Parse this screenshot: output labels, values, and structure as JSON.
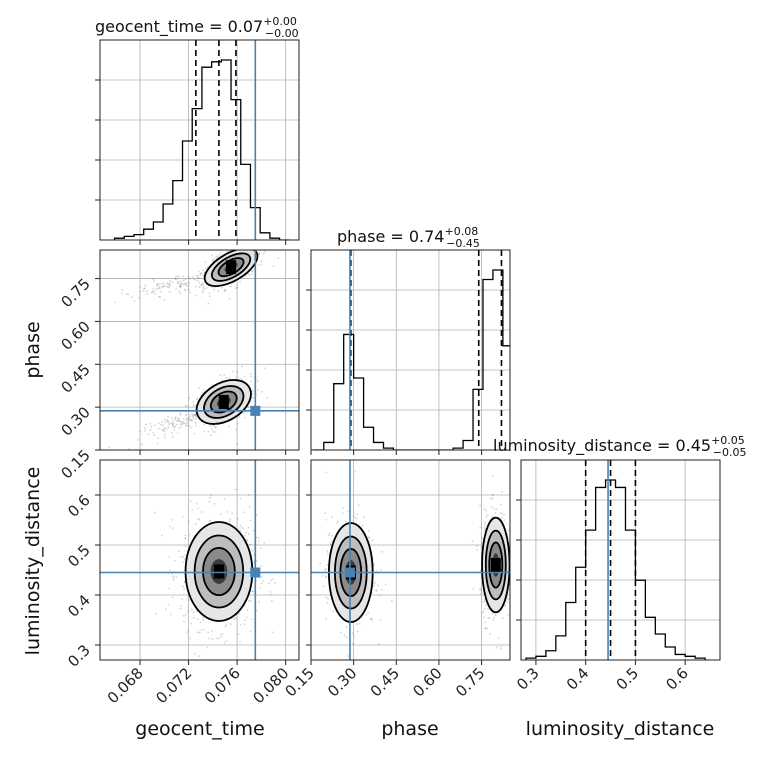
{
  "chart_data": {
    "type": "corner",
    "parameters": [
      "geocent_time",
      "phase",
      "luminosity_distance"
    ],
    "axis_labels": [
      "geocent_time",
      "phase",
      "luminosity_distance"
    ],
    "titles": [
      {
        "text": "geocent_time = 0.07",
        "sup": "+0.00",
        "sub": "−0.00"
      },
      {
        "text": "phase = 0.74",
        "sup": "+0.08",
        "sub": "−0.45"
      },
      {
        "text": "luminosity_distance = 0.45",
        "sup": "+0.05",
        "sub": "−0.05"
      }
    ],
    "ranges": [
      [
        0.0647,
        0.0811
      ],
      [
        0.15,
        0.85
      ],
      [
        0.27,
        0.67
      ]
    ],
    "ticks": [
      {
        "values": [
          0.068,
          0.072,
          0.076,
          0.08
        ],
        "labels": [
          "0.068",
          "0.072",
          "0.076",
          "0.080"
        ]
      },
      {
        "values": [
          0.15,
          0.3,
          0.45,
          0.6,
          0.75
        ],
        "labels": [
          "0.15",
          "0.30",
          "0.45",
          "0.60",
          "0.75"
        ]
      },
      {
        "values": [
          0.3,
          0.4,
          0.5,
          0.6
        ],
        "labels": [
          "0.3",
          "0.4",
          "0.5",
          "0.6"
        ]
      }
    ],
    "truths": [
      0.0775,
      0.287,
      0.445
    ],
    "quantiles": [
      [
        0.0726,
        0.0745,
        0.0759
      ],
      [
        0.29,
        0.74,
        0.82
      ],
      [
        0.4,
        0.45,
        0.5
      ]
    ],
    "histograms": [
      {
        "edges": [
          0.0659,
          0.0667,
          0.0675,
          0.0683,
          0.0691,
          0.0699,
          0.0707,
          0.0715,
          0.0723,
          0.0731,
          0.0739,
          0.0747,
          0.0755,
          0.0763,
          0.0771,
          0.0779,
          0.0787,
          0.0795,
          0.0803
        ],
        "counts": [
          0.01,
          0.02,
          0.03,
          0.06,
          0.1,
          0.2,
          0.33,
          0.55,
          0.73,
          0.96,
          0.99,
          1.0,
          0.78,
          0.42,
          0.18,
          0.04,
          0.01,
          0.0
        ]
      },
      {
        "edges": [
          0.16,
          0.195,
          0.23,
          0.265,
          0.3,
          0.335,
          0.37,
          0.405,
          0.44,
          0.475,
          0.51,
          0.545,
          0.58,
          0.615,
          0.65,
          0.685,
          0.72,
          0.755,
          0.79,
          0.825,
          0.86
        ],
        "counts": [
          0.0,
          0.04,
          0.35,
          0.61,
          0.38,
          0.12,
          0.04,
          0.01,
          0.0,
          0.0,
          0.0,
          0.0,
          0.0,
          0.0,
          0.01,
          0.05,
          0.32,
          0.9,
          0.95,
          0.55
        ]
      },
      {
        "edges": [
          0.28,
          0.3,
          0.32,
          0.34,
          0.36,
          0.38,
          0.4,
          0.42,
          0.44,
          0.46,
          0.48,
          0.5,
          0.52,
          0.54,
          0.56,
          0.58,
          0.6,
          0.62,
          0.64
        ],
        "counts": [
          0.01,
          0.02,
          0.05,
          0.13,
          0.31,
          0.5,
          0.7,
          0.93,
          0.97,
          0.93,
          0.7,
          0.43,
          0.23,
          0.14,
          0.07,
          0.03,
          0.02,
          0.01
        ]
      }
    ],
    "density_2d": [
      {
        "x_param": "geocent_time",
        "y_param": "phase",
        "modes": [
          {
            "cx": 0.0755,
            "cy": 0.79,
            "sx": 0.0011,
            "sy": 0.022,
            "rot": -30,
            "weight": 0.55
          },
          {
            "cx": 0.0749,
            "cy": 0.318,
            "sx": 0.0011,
            "sy": 0.03,
            "rot": -30,
            "weight": 0.45
          }
        ],
        "tails": [
          {
            "cx": 0.0708,
            "cy": 0.73,
            "sx": 0.0018,
            "sy": 0.012,
            "rot": -12
          },
          {
            "cx": 0.0712,
            "cy": 0.245,
            "sx": 0.0013,
            "sy": 0.012,
            "rot": -20
          }
        ]
      },
      {
        "x_param": "geocent_time",
        "y_param": "luminosity_distance",
        "modes": [
          {
            "cx": 0.0745,
            "cy": 0.447,
            "sx": 0.00125,
            "sy": 0.045,
            "rot": 0,
            "weight": 1.0
          }
        ],
        "tails": []
      },
      {
        "x_param": "phase",
        "y_param": "luminosity_distance",
        "modes": [
          {
            "cx": 0.29,
            "cy": 0.445,
            "sx": 0.035,
            "sy": 0.045,
            "rot": 0,
            "weight": 0.45
          },
          {
            "cx": 0.8,
            "cy": 0.46,
            "sx": 0.022,
            "sy": 0.043,
            "rot": 0,
            "weight": 0.55
          }
        ],
        "tails": []
      }
    ]
  }
}
